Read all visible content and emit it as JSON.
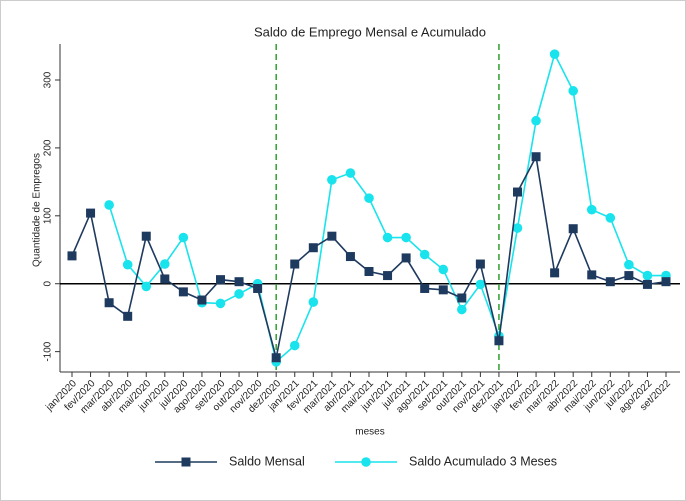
{
  "chart_data": {
    "type": "line",
    "title": "Saldo de Emprego Mensal e Acumulado",
    "x_label": "meses",
    "y_label": "Quantidade de Empregos",
    "categories": [
      "jan/2020",
      "fev/2020",
      "mar/2020",
      "abr/2020",
      "mai/2020",
      "jun/2020",
      "jul/2020",
      "ago/2020",
      "set/2020",
      "out/2020",
      "nov/2020",
      "dez/2020",
      "jan/2021",
      "fev/2021",
      "mar/2021",
      "abr/2021",
      "mai/2021",
      "jun/2021",
      "jul/2021",
      "ago/2021",
      "set/2021",
      "out/2021",
      "nov/2021",
      "dez/2021",
      "jan/2022",
      "fev/2022",
      "mar/2022",
      "abr/2022",
      "mai/2022",
      "jun/2022",
      "jul/2022",
      "ago/2022",
      "set/2022"
    ],
    "series": [
      {
        "name": "Saldo Mensal",
        "color": "#1f3a5f",
        "marker": "square",
        "values": [
          41,
          104,
          -28,
          -48,
          70,
          7,
          -12,
          -24,
          6,
          3,
          -7,
          -109,
          29,
          53,
          70,
          40,
          18,
          12,
          38,
          -7,
          -9,
          -21,
          29,
          -84,
          135,
          187,
          16,
          81,
          13,
          3,
          12,
          -1,
          3
        ]
      },
      {
        "name": "Saldo Acumulado 3 Meses",
        "color": "#19e3ec",
        "marker": "circle",
        "values": [
          null,
          null,
          116,
          28,
          -4,
          29,
          68,
          -28,
          -29,
          -15,
          0,
          -115,
          -91,
          -27,
          153,
          163,
          126,
          68,
          68,
          43,
          21,
          -38,
          -1,
          -77,
          82,
          240,
          338,
          284,
          109,
          97,
          28,
          12,
          12
        ]
      }
    ],
    "ylim": [
      -130,
      353
    ],
    "yticks": [
      -100,
      0,
      100,
      200,
      300
    ],
    "reference_line": 0,
    "vlines": [
      "dez/2020",
      "dez/2021"
    ],
    "vline_color": "#2ca02c"
  }
}
